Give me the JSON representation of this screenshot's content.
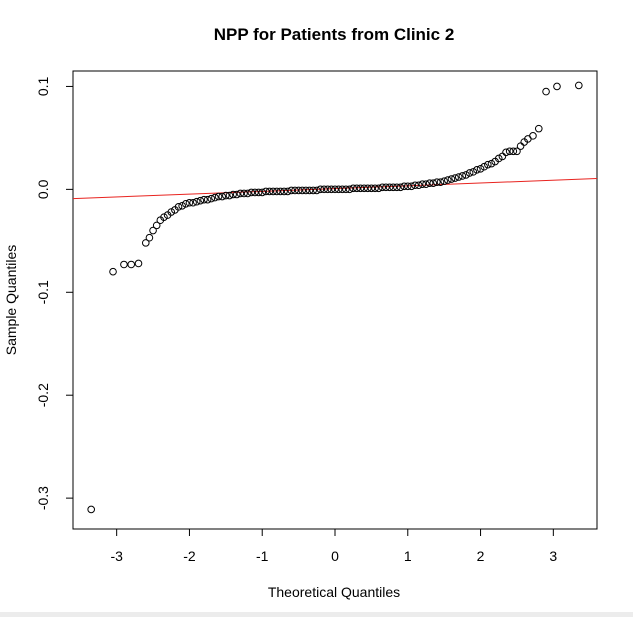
{
  "chart_data": {
    "type": "scatter",
    "title": "NPP for Patients from Clinic 2",
    "xlabel": "Theoretical Quantiles",
    "ylabel": "Sample Quantiles",
    "xlim": [
      -3.6,
      3.6
    ],
    "ylim": [
      -0.33,
      0.115
    ],
    "xticks": [
      -3,
      -2,
      -1,
      0,
      1,
      2,
      3
    ],
    "xtick_labels": [
      "-3",
      "-2",
      "-1",
      "0",
      "1",
      "2",
      "3"
    ],
    "yticks": [
      0.1,
      0.0,
      -0.1,
      -0.2,
      -0.3
    ],
    "ytick_labels": [
      "0.1",
      "0.0",
      "-0.1",
      "-0.2",
      "-0.3"
    ],
    "grid": false,
    "point_style": "open-circle",
    "reference_line": {
      "x": [
        -3.6,
        3.6
      ],
      "y": [
        -0.009,
        0.0105
      ],
      "color": "#e8231f"
    },
    "series": [
      {
        "color": "#000000",
        "points": [
          [
            -3.35,
            -0.311
          ],
          [
            -3.05,
            -0.08
          ],
          [
            -2.9,
            -0.073
          ],
          [
            -2.8,
            -0.073
          ],
          [
            -2.7,
            -0.072
          ],
          [
            -2.6,
            -0.052
          ],
          [
            -2.55,
            -0.047
          ],
          [
            -2.5,
            -0.04
          ],
          [
            -2.45,
            -0.035
          ],
          [
            -2.4,
            -0.03
          ],
          [
            -2.35,
            -0.027
          ],
          [
            -2.3,
            -0.025
          ],
          [
            -2.25,
            -0.022
          ],
          [
            -2.2,
            -0.02
          ],
          [
            -2.15,
            -0.017
          ],
          [
            -2.1,
            -0.016
          ],
          [
            -2.05,
            -0.014
          ],
          [
            -2.0,
            -0.013
          ],
          [
            -1.95,
            -0.013
          ],
          [
            -1.9,
            -0.012
          ],
          [
            -1.85,
            -0.011
          ],
          [
            -1.8,
            -0.01
          ],
          [
            -1.75,
            -0.01
          ],
          [
            -1.7,
            -0.009
          ],
          [
            -1.65,
            -0.008
          ],
          [
            -1.6,
            -0.007
          ],
          [
            -1.55,
            -0.007
          ],
          [
            -1.5,
            -0.006
          ],
          [
            -1.45,
            -0.006
          ],
          [
            -1.4,
            -0.005
          ],
          [
            -1.35,
            -0.005
          ],
          [
            -1.3,
            -0.004
          ],
          [
            -1.25,
            -0.004
          ],
          [
            -1.2,
            -0.004
          ],
          [
            -1.15,
            -0.003
          ],
          [
            -1.1,
            -0.003
          ],
          [
            -1.05,
            -0.003
          ],
          [
            -1.0,
            -0.003
          ],
          [
            -0.95,
            -0.002
          ],
          [
            -0.9,
            -0.002
          ],
          [
            -0.85,
            -0.002
          ],
          [
            -0.8,
            -0.002
          ],
          [
            -0.75,
            -0.002
          ],
          [
            -0.7,
            -0.002
          ],
          [
            -0.65,
            -0.002
          ],
          [
            -0.6,
            -0.001
          ],
          [
            -0.55,
            -0.001
          ],
          [
            -0.5,
            -0.001
          ],
          [
            -0.45,
            -0.001
          ],
          [
            -0.4,
            -0.001
          ],
          [
            -0.35,
            -0.001
          ],
          [
            -0.3,
            -0.001
          ],
          [
            -0.25,
            -0.001
          ],
          [
            -0.2,
            0.0
          ],
          [
            -0.15,
            0.0
          ],
          [
            -0.1,
            0.0
          ],
          [
            -0.05,
            0.0
          ],
          [
            0.0,
            0.0
          ],
          [
            0.05,
            0.0
          ],
          [
            0.1,
            0.0
          ],
          [
            0.15,
            0.0
          ],
          [
            0.2,
            0.0
          ],
          [
            0.25,
            0.001
          ],
          [
            0.3,
            0.001
          ],
          [
            0.35,
            0.001
          ],
          [
            0.4,
            0.001
          ],
          [
            0.45,
            0.001
          ],
          [
            0.5,
            0.001
          ],
          [
            0.55,
            0.001
          ],
          [
            0.6,
            0.001
          ],
          [
            0.65,
            0.002
          ],
          [
            0.7,
            0.002
          ],
          [
            0.75,
            0.002
          ],
          [
            0.8,
            0.002
          ],
          [
            0.85,
            0.002
          ],
          [
            0.9,
            0.002
          ],
          [
            0.95,
            0.003
          ],
          [
            1.0,
            0.003
          ],
          [
            1.05,
            0.003
          ],
          [
            1.1,
            0.004
          ],
          [
            1.15,
            0.004
          ],
          [
            1.2,
            0.005
          ],
          [
            1.25,
            0.005
          ],
          [
            1.3,
            0.006
          ],
          [
            1.35,
            0.006
          ],
          [
            1.4,
            0.007
          ],
          [
            1.45,
            0.007
          ],
          [
            1.5,
            0.008
          ],
          [
            1.55,
            0.009
          ],
          [
            1.6,
            0.01
          ],
          [
            1.65,
            0.011
          ],
          [
            1.7,
            0.012
          ],
          [
            1.75,
            0.013
          ],
          [
            1.8,
            0.014
          ],
          [
            1.85,
            0.016
          ],
          [
            1.9,
            0.017
          ],
          [
            1.95,
            0.019
          ],
          [
            2.0,
            0.02
          ],
          [
            2.05,
            0.022
          ],
          [
            2.1,
            0.024
          ],
          [
            2.15,
            0.025
          ],
          [
            2.2,
            0.027
          ],
          [
            2.25,
            0.03
          ],
          [
            2.3,
            0.032
          ],
          [
            2.35,
            0.036
          ],
          [
            2.4,
            0.037
          ],
          [
            2.45,
            0.037
          ],
          [
            2.5,
            0.037
          ],
          [
            2.55,
            0.042
          ],
          [
            2.6,
            0.046
          ],
          [
            2.65,
            0.049
          ],
          [
            2.72,
            0.052
          ],
          [
            2.8,
            0.059
          ],
          [
            2.9,
            0.095
          ],
          [
            3.05,
            0.1
          ],
          [
            3.35,
            0.101
          ]
        ]
      }
    ]
  }
}
